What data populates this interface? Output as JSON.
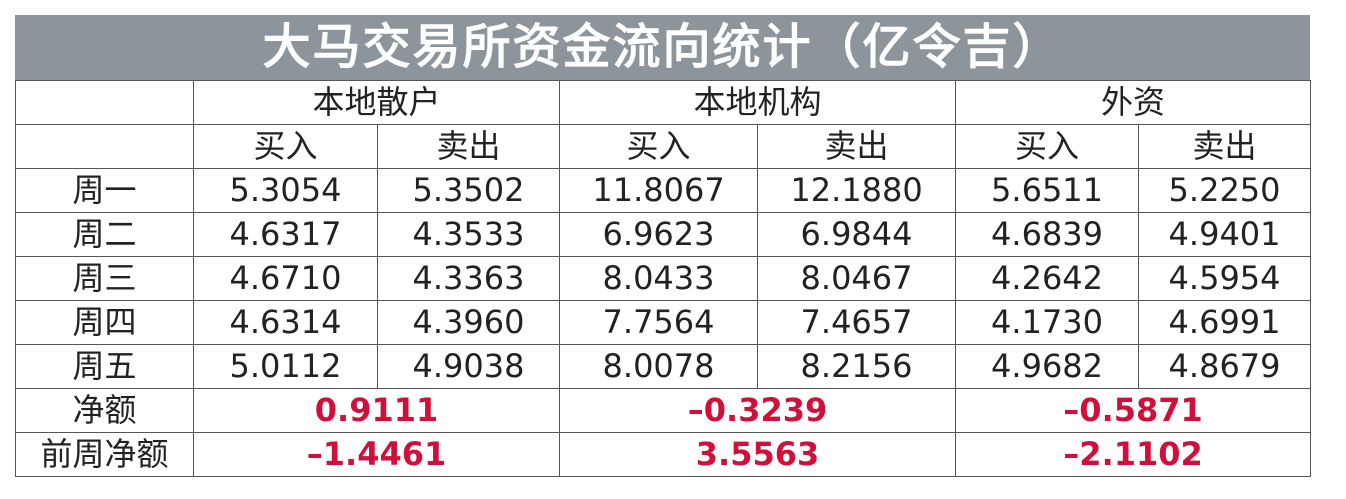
{
  "title": "大马交易所资金流向统计（亿令吉）",
  "table": {
    "groups": [
      "本地散户",
      "本地机构",
      "外资"
    ],
    "subheaders": [
      "买入",
      "卖出",
      "买入",
      "卖出",
      "买入",
      "卖出"
    ],
    "rows": [
      {
        "label": "周一",
        "values": [
          "5.3054",
          "5.3502",
          "11.8067",
          "12.1880",
          "5.6511",
          "5.2250"
        ]
      },
      {
        "label": "周二",
        "values": [
          "4.6317",
          "4.3533",
          "6.9623",
          "6.9844",
          "4.6839",
          "4.9401"
        ]
      },
      {
        "label": "周三",
        "values": [
          "4.6710",
          "4.3363",
          "8.0433",
          "8.0467",
          "4.2642",
          "4.5954"
        ]
      },
      {
        "label": "周四",
        "values": [
          "4.6314",
          "4.3960",
          "7.7564",
          "7.4657",
          "4.1730",
          "4.6991"
        ]
      },
      {
        "label": "周五",
        "values": [
          "5.0112",
          "4.9038",
          "8.0078",
          "8.2156",
          "4.9682",
          "4.8679"
        ]
      }
    ],
    "summary": [
      {
        "label": "净额",
        "values": [
          "0.9111",
          "–0.3239",
          "–0.5871"
        ]
      },
      {
        "label": "前周净额",
        "values": [
          "–1.4461",
          "3.5563",
          "–2.1102"
        ]
      }
    ]
  }
}
